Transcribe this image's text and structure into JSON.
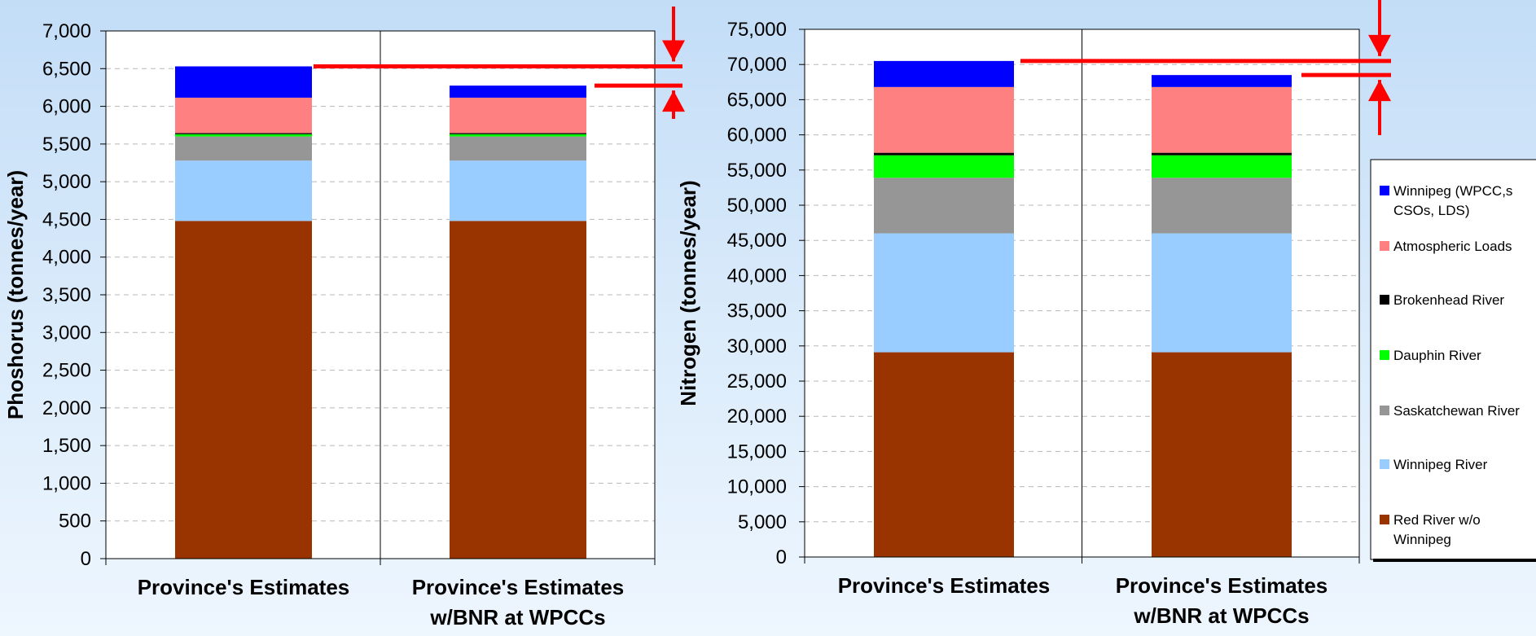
{
  "chart_data": [
    {
      "type": "bar",
      "stacked": true,
      "ylabel": "Phoshorus (tonnes/year)",
      "ylim": [
        0,
        7000
      ],
      "yticks": [
        "0",
        "500",
        "1,000",
        "1,500",
        "2,000",
        "2,500",
        "3,000",
        "3,500",
        "4,000",
        "4,500",
        "5,000",
        "5,500",
        "6,000",
        "6,500",
        "7,000"
      ],
      "categories": [
        [
          "Province's Estimates"
        ],
        [
          "Province's Estimates",
          "w/BNR at WPCCs"
        ]
      ],
      "grid": true,
      "series": [
        {
          "name": "Red River w/o Winnipeg",
          "color": "#993300",
          "values": [
            4480,
            4480
          ]
        },
        {
          "name": "Winnipeg River",
          "color": "#99ccff",
          "values": [
            800,
            800
          ]
        },
        {
          "name": "Saskatchewan River",
          "color": "#969696",
          "values": [
            320,
            320
          ]
        },
        {
          "name": "Dauphin River",
          "color": "#00ff00",
          "values": [
            30,
            30
          ]
        },
        {
          "name": "Brokenhead River",
          "color": "#000000",
          "values": [
            15,
            15
          ]
        },
        {
          "name": "Atmospheric Loads",
          "color": "#ff8080",
          "values": [
            470,
            470
          ]
        },
        {
          "name": "Winnipeg (WPCC,s CSOs, LDS)",
          "color": "#0000ff",
          "values": [
            415,
            160
          ]
        }
      ]
    },
    {
      "type": "bar",
      "stacked": true,
      "ylabel": "Nitrogen (tonnes/year)",
      "ylim": [
        0,
        75000
      ],
      "yticks": [
        "0",
        "5,000",
        "10,000",
        "15,000",
        "20,000",
        "25,000",
        "30,000",
        "35,000",
        "40,000",
        "45,000",
        "50,000",
        "55,000",
        "60,000",
        "65,000",
        "70,000",
        "75,000"
      ],
      "categories": [
        [
          "Province's Estimates"
        ],
        [
          "Province's Estimates",
          "w/BNR at WPCCs"
        ]
      ],
      "grid": true,
      "legend_position": "right",
      "series": [
        {
          "name": "Red River w/o Winnipeg",
          "color": "#993300",
          "values": [
            29100,
            29100
          ]
        },
        {
          "name": "Winnipeg River",
          "color": "#99ccff",
          "values": [
            16900,
            16900
          ]
        },
        {
          "name": "Saskatchewan River",
          "color": "#969696",
          "values": [
            7900,
            7900
          ]
        },
        {
          "name": "Dauphin River",
          "color": "#00ff00",
          "values": [
            3200,
            3200
          ]
        },
        {
          "name": "Brokenhead River",
          "color": "#000000",
          "values": [
            350,
            350
          ]
        },
        {
          "name": "Atmospheric Loads",
          "color": "#ff8080",
          "values": [
            9350,
            9350
          ]
        },
        {
          "name": "Winnipeg (WPCC,s CSOs, LDS)",
          "color": "#0000ff",
          "values": [
            3700,
            1700
          ]
        }
      ]
    }
  ],
  "legend": {
    "items": [
      {
        "lines": [
          "Winnipeg (WPCC,s",
          "CSOs, LDS)"
        ],
        "color": "#0000ff"
      },
      {
        "lines": [
          "Atmospheric Loads"
        ],
        "color": "#ff8080"
      },
      {
        "lines": [
          "Brokenhead River"
        ],
        "color": "#000000"
      },
      {
        "lines": [
          "Dauphin River"
        ],
        "color": "#00ff00"
      },
      {
        "lines": [
          "Saskatchewan River"
        ],
        "color": "#969696"
      },
      {
        "lines": [
          "Winnipeg River"
        ],
        "color": "#99ccff"
      },
      {
        "lines": [
          "Red River w/o",
          "Winnipeg"
        ],
        "color": "#993300"
      }
    ]
  },
  "annotation_color": "#ff0000"
}
